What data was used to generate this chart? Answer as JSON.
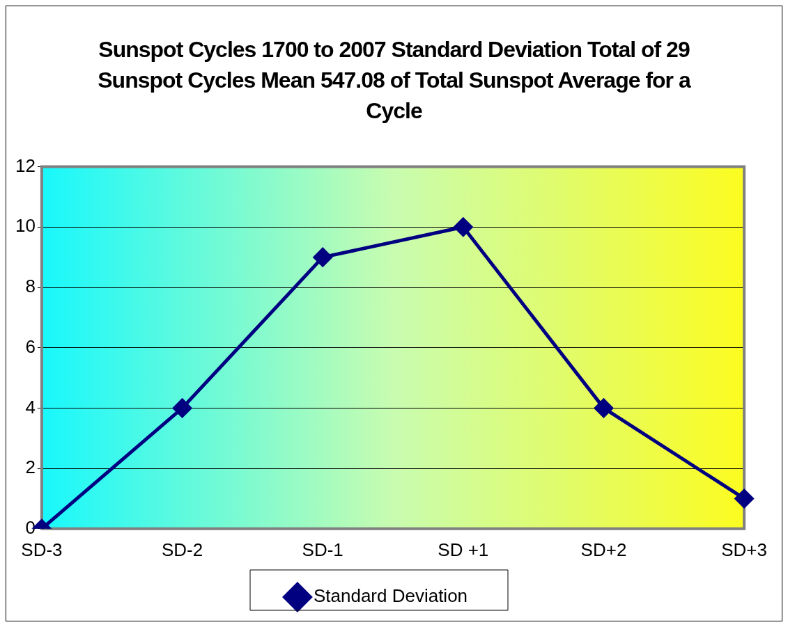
{
  "chart_data": {
    "type": "line",
    "title": "Sunspot Cycles 1700 to 2007 Standard Deviation Total of 29 Sunspot Cycles Mean 547.08 of Total Sunspot Average for a Cycle",
    "categories": [
      "SD-3",
      "SD-2",
      "SD-1",
      "SD +1",
      "SD+2",
      "SD+3"
    ],
    "series": [
      {
        "name": "Standard Deviation",
        "color": "#000080",
        "values": [
          0,
          4,
          9,
          10,
          4,
          1
        ]
      }
    ],
    "ylim": [
      0,
      12
    ],
    "yticks": [
      0,
      2,
      4,
      6,
      8,
      10,
      12
    ],
    "grid": "y",
    "legend": "bottom",
    "marker": "diamond",
    "line_style": "solid"
  }
}
